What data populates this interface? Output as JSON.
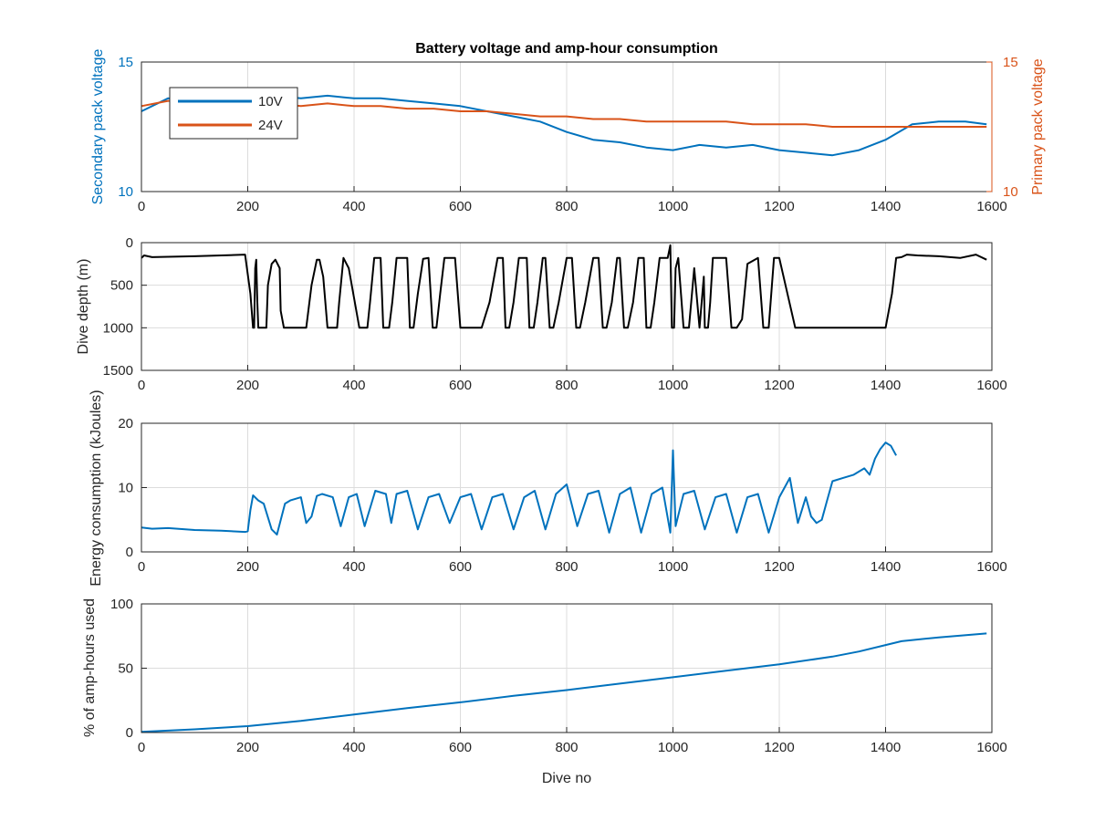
{
  "chart_data": [
    {
      "type": "line",
      "title": "Battery voltage and amp-hour consumption",
      "xlabel": "",
      "xlim": [
        0,
        1600
      ],
      "xticks": [
        0,
        200,
        400,
        600,
        800,
        1000,
        1200,
        1400,
        1600
      ],
      "ylabel": "Secondary pack voltage",
      "ylim": [
        10,
        15
      ],
      "yticks": [
        10,
        15
      ],
      "ylabel_right": "Primary pack voltage",
      "ylim_right": [
        10,
        15
      ],
      "yticks_right": [
        10,
        15
      ],
      "grid": true,
      "legend_position": "top-left",
      "series": [
        {
          "name": "10V",
          "axis": "left",
          "color": "#0072BD",
          "x": [
            0,
            50,
            100,
            150,
            200,
            250,
            300,
            350,
            400,
            450,
            500,
            550,
            600,
            650,
            700,
            750,
            800,
            850,
            900,
            950,
            1000,
            1050,
            1100,
            1150,
            1200,
            1250,
            1300,
            1350,
            1400,
            1450,
            1500,
            1550,
            1590
          ],
          "y": [
            13.1,
            13.6,
            13.5,
            13.4,
            13.5,
            13.7,
            13.6,
            13.7,
            13.6,
            13.6,
            13.5,
            13.4,
            13.3,
            13.1,
            12.9,
            12.7,
            12.3,
            12.0,
            11.9,
            11.7,
            11.6,
            11.8,
            11.7,
            11.8,
            11.6,
            11.5,
            11.4,
            11.6,
            12.0,
            12.6,
            12.7,
            12.7,
            12.6
          ]
        },
        {
          "name": "24V",
          "axis": "right",
          "color": "#D95319",
          "x": [
            0,
            50,
            100,
            150,
            200,
            250,
            300,
            350,
            400,
            450,
            500,
            550,
            600,
            650,
            700,
            750,
            800,
            850,
            900,
            950,
            1000,
            1050,
            1100,
            1150,
            1200,
            1250,
            1300,
            1350,
            1400,
            1450,
            1500,
            1550,
            1590
          ],
          "y": [
            13.3,
            13.5,
            13.5,
            13.5,
            13.4,
            13.4,
            13.3,
            13.4,
            13.3,
            13.3,
            13.2,
            13.2,
            13.1,
            13.1,
            13.0,
            12.9,
            12.9,
            12.8,
            12.8,
            12.7,
            12.7,
            12.7,
            12.7,
            12.6,
            12.6,
            12.6,
            12.5,
            12.5,
            12.5,
            12.5,
            12.5,
            12.5,
            12.5
          ]
        }
      ]
    },
    {
      "type": "line",
      "title": "",
      "xlabel": "",
      "ylabel": "Dive depth (m)",
      "xlim": [
        0,
        1600
      ],
      "xticks": [
        0,
        200,
        400,
        600,
        800,
        1000,
        1200,
        1400,
        1600
      ],
      "ylim": [
        0,
        1500
      ],
      "y_reversed": true,
      "yticks": [
        0,
        500,
        1000,
        1500
      ],
      "grid": true,
      "series": [
        {
          "color": "#000000",
          "x": [
            0,
            5,
            20,
            100,
            150,
            195,
            205,
            210,
            212,
            214,
            216,
            218,
            220,
            225,
            230,
            235,
            238,
            245,
            252,
            260,
            262,
            268,
            280,
            310,
            320,
            330,
            335,
            342,
            350,
            360,
            368,
            372,
            380,
            390,
            410,
            425,
            430,
            438,
            450,
            455,
            466,
            472,
            480,
            500,
            505,
            512,
            520,
            530,
            540,
            548,
            555,
            562,
            570,
            590,
            600,
            615,
            622,
            630,
            640,
            655,
            670,
            680,
            685,
            692,
            700,
            710,
            725,
            730,
            738,
            745,
            755,
            760,
            768,
            775,
            785,
            800,
            810,
            818,
            825,
            835,
            850,
            860,
            868,
            875,
            885,
            895,
            900,
            908,
            915,
            925,
            935,
            945,
            950,
            958,
            965,
            975,
            990,
            995,
            998,
            1000,
            1002,
            1005,
            1010,
            1020,
            1030,
            1040,
            1050,
            1058,
            1060,
            1063,
            1066,
            1070,
            1075,
            1100,
            1110,
            1120,
            1130,
            1140,
            1160,
            1170,
            1180,
            1190,
            1200,
            1230,
            1240,
            1250,
            1262,
            1275,
            1290,
            1330,
            1400,
            1412,
            1420,
            1430,
            1440,
            1460,
            1500,
            1540,
            1570,
            1590
          ],
          "y": [
            180,
            150,
            170,
            160,
            150,
            140,
            600,
            1000,
            1000,
            300,
            200,
            700,
            1000,
            1000,
            1000,
            1000,
            500,
            250,
            200,
            300,
            800,
            1000,
            1000,
            1000,
            500,
            200,
            200,
            400,
            1000,
            1000,
            1000,
            700,
            180,
            300,
            1000,
            1000,
            700,
            180,
            180,
            1000,
            1000,
            700,
            180,
            180,
            1000,
            1000,
            600,
            190,
            180,
            1000,
            1000,
            600,
            180,
            180,
            1000,
            1000,
            1000,
            1000,
            1000,
            700,
            180,
            180,
            1000,
            1000,
            700,
            180,
            180,
            1000,
            1000,
            700,
            180,
            180,
            1000,
            1000,
            700,
            180,
            180,
            1000,
            1000,
            700,
            180,
            180,
            1000,
            1000,
            700,
            180,
            180,
            1000,
            1000,
            700,
            180,
            180,
            1000,
            1000,
            700,
            180,
            180,
            30,
            1000,
            1000,
            1000,
            300,
            180,
            1000,
            1000,
            300,
            1000,
            400,
            1000,
            1000,
            1000,
            700,
            180,
            180,
            1000,
            1000,
            900,
            250,
            180,
            1000,
            1000,
            180,
            180,
            1000,
            1000,
            1000,
            1000,
            1000,
            1000,
            1000,
            1000,
            600,
            180,
            170,
            140,
            150,
            160,
            180,
            140,
            200
          ]
        }
      ]
    },
    {
      "type": "line",
      "title": "",
      "xlabel": "",
      "ylabel": "Energy consumption (kJoules)",
      "xlim": [
        0,
        1600
      ],
      "xticks": [
        0,
        200,
        400,
        600,
        800,
        1000,
        1200,
        1400,
        1600
      ],
      "ylim": [
        0,
        20
      ],
      "yticks": [
        0,
        10,
        20
      ],
      "grid": true,
      "series": [
        {
          "color": "#0072BD",
          "x": [
            0,
            20,
            50,
            100,
            150,
            195,
            200,
            205,
            210,
            220,
            230,
            245,
            255,
            270,
            280,
            300,
            310,
            320,
            330,
            340,
            360,
            375,
            390,
            405,
            420,
            440,
            460,
            470,
            480,
            500,
            520,
            540,
            560,
            580,
            600,
            620,
            640,
            660,
            680,
            700,
            720,
            740,
            760,
            780,
            800,
            820,
            840,
            860,
            880,
            900,
            920,
            940,
            960,
            980,
            995,
            1000,
            1005,
            1020,
            1040,
            1060,
            1080,
            1100,
            1120,
            1140,
            1160,
            1180,
            1200,
            1220,
            1235,
            1250,
            1260,
            1270,
            1280,
            1290,
            1300,
            1320,
            1340,
            1360,
            1370,
            1380,
            1390,
            1400,
            1410,
            1420
          ],
          "y": [
            3.8,
            3.6,
            3.7,
            3.4,
            3.3,
            3.1,
            3.2,
            6.5,
            8.8,
            8.0,
            7.5,
            3.5,
            2.7,
            7.5,
            8.0,
            8.5,
            4.5,
            5.5,
            8.7,
            9.0,
            8.5,
            4.0,
            8.5,
            9.0,
            4.0,
            9.5,
            9.0,
            4.5,
            9.0,
            9.5,
            3.5,
            8.5,
            9.0,
            4.5,
            8.5,
            9.0,
            3.5,
            8.5,
            9.0,
            3.5,
            8.5,
            9.5,
            3.5,
            9.0,
            10.5,
            4.0,
            9.0,
            9.5,
            3.0,
            9.0,
            10.0,
            3.0,
            9.0,
            10.0,
            3.0,
            15.8,
            4.0,
            9.0,
            9.5,
            3.5,
            8.5,
            9.0,
            3.0,
            8.5,
            9.0,
            3.0,
            8.5,
            11.5,
            4.5,
            8.5,
            5.5,
            4.5,
            5.0,
            8.0,
            11.0,
            11.5,
            12.0,
            13.0,
            12.0,
            14.5,
            16.0,
            17.0,
            16.5,
            15.0
          ]
        }
      ]
    },
    {
      "type": "line",
      "title": "",
      "xlabel": "Dive no",
      "ylabel": "% of amp-hours used",
      "xlim": [
        0,
        1600
      ],
      "xticks": [
        0,
        200,
        400,
        600,
        800,
        1000,
        1200,
        1400,
        1600
      ],
      "ylim": [
        0,
        100
      ],
      "yticks": [
        0,
        50,
        100
      ],
      "grid": true,
      "series": [
        {
          "color": "#0072BD",
          "x": [
            0,
            100,
            200,
            300,
            400,
            500,
            600,
            700,
            800,
            900,
            1000,
            1100,
            1200,
            1300,
            1350,
            1400,
            1430,
            1500,
            1590
          ],
          "y": [
            0.5,
            2.5,
            5,
            9,
            14,
            19,
            23.5,
            28.5,
            33,
            38,
            43,
            48,
            53,
            59,
            63,
            68,
            71,
            74,
            77
          ]
        }
      ]
    }
  ]
}
